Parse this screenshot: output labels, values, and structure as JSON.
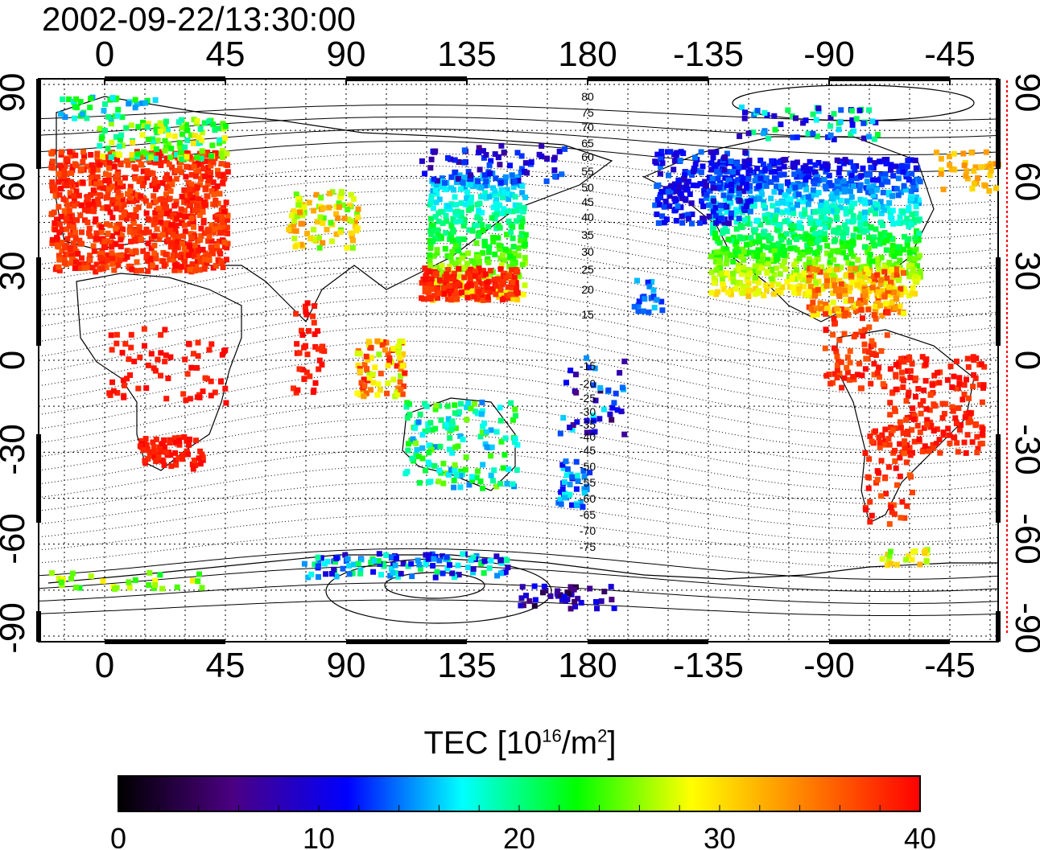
{
  "header": {
    "timestamp": "2002-09-22/13:30:00"
  },
  "map": {
    "lon_tick_labels": [
      "0",
      "45",
      "90",
      "135",
      "180",
      "-135",
      "-90",
      "-45"
    ],
    "lat_tick_labels": [
      "90",
      "60",
      "30",
      "0",
      "-30",
      "-60",
      "-90"
    ],
    "contour_labels": [
      "80",
      "75",
      "70",
      "65",
      "60",
      "55",
      "50",
      "45",
      "40",
      "35",
      "30",
      "25",
      "20",
      "15",
      "-15",
      "-20",
      "-25",
      "-30",
      "-35",
      "-40",
      "-45",
      "-50",
      "-55",
      "-60",
      "-65",
      "-70",
      "-75"
    ],
    "colors": {
      "border_right": "#ff0000",
      "frame": "#000000",
      "grid": "#000000"
    }
  },
  "colorbar": {
    "label_main": "TEC  [10",
    "label_exp": "16",
    "label_unit": "/m",
    "label_exp2": "2",
    "label_close": "]",
    "ticks": [
      "0",
      "10",
      "20",
      "30",
      "40"
    ],
    "range": [
      0,
      40
    ],
    "colormap_stops": [
      "#000000",
      "#4b0082",
      "#0000ff",
      "#00ffff",
      "#00ff00",
      "#ffff00",
      "#ff8000",
      "#ff0000"
    ]
  }
}
